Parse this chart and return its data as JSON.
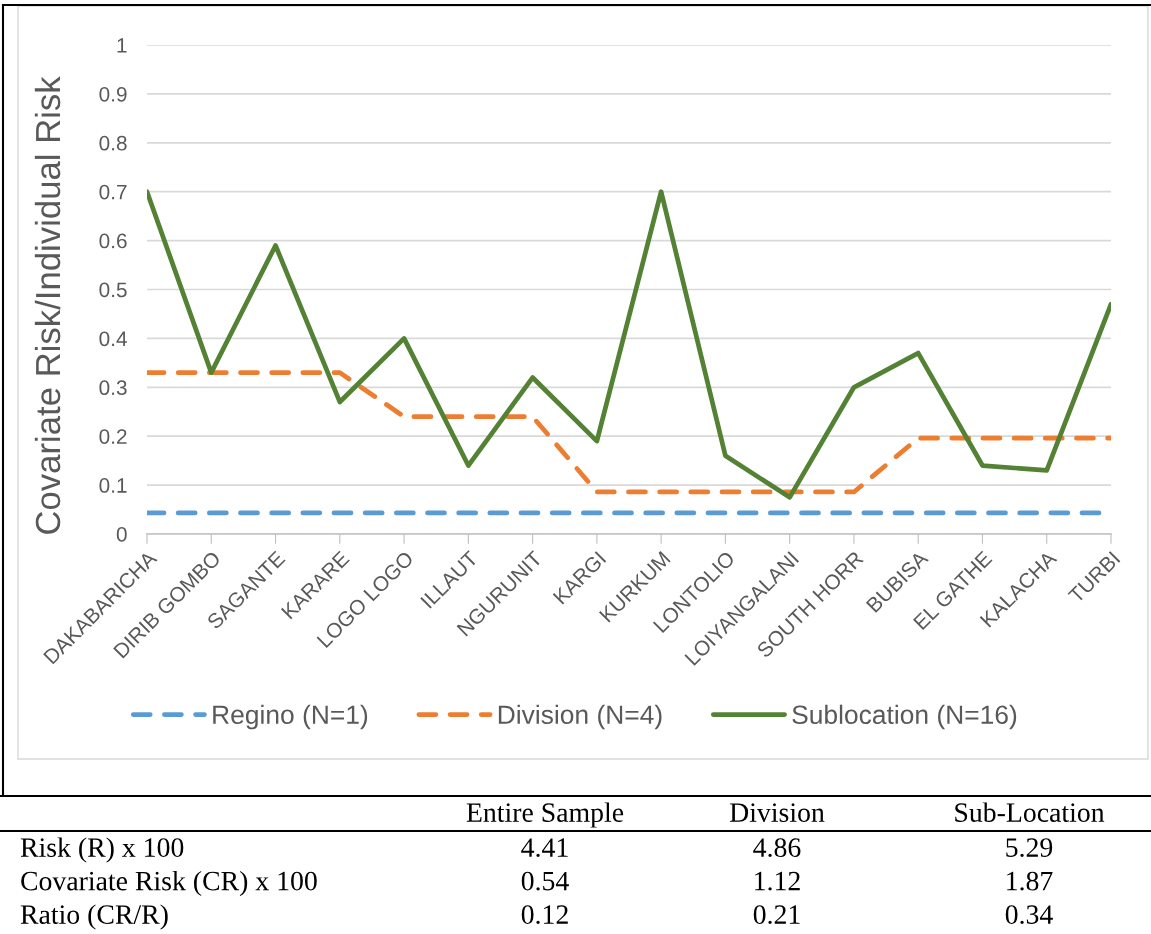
{
  "chart_data": {
    "type": "line",
    "ylabel": "Covariate Risk/Individual Risk",
    "categories": [
      "DAKABARICHA",
      "DIRIB GOMBO",
      "SAGANTE",
      "KARARE",
      "LOGO LOGO",
      "ILLAUT",
      "NGURUNIT",
      "KARGI",
      "KURKUM",
      "LONTOLIO",
      "LOIYANGALANI",
      "SOUTH HORR",
      "BUBISA",
      "EL GATHE",
      "KALACHA",
      "TURBI"
    ],
    "series": [
      {
        "name": "Regino (N=1)",
        "color": "#5b9bd5",
        "line_style": "dashed",
        "values": [
          0.043,
          0.043,
          0.043,
          0.043,
          0.043,
          0.043,
          0.043,
          0.043,
          0.043,
          0.043,
          0.043,
          0.043,
          0.043,
          0.043,
          0.043,
          0.043
        ]
      },
      {
        "name": "Division (N=4)",
        "color": "#ed7d31",
        "line_style": "dashed",
        "values": [
          0.33,
          0.33,
          0.33,
          0.33,
          0.24,
          0.24,
          0.24,
          0.086,
          0.086,
          0.086,
          0.086,
          0.086,
          0.196,
          0.196,
          0.196,
          0.196
        ]
      },
      {
        "name": "Sublocation (N=16)",
        "color": "#548235",
        "line_style": "solid",
        "values": [
          0.7,
          0.33,
          0.59,
          0.27,
          0.4,
          0.14,
          0.32,
          0.19,
          0.7,
          0.16,
          0.075,
          0.3,
          0.37,
          0.14,
          0.13,
          0.47
        ]
      }
    ],
    "ylim": [
      0,
      1
    ],
    "yticks": [
      0,
      0.1,
      0.2,
      0.3,
      0.4,
      0.5,
      0.6,
      0.7,
      0.8,
      0.9,
      1
    ],
    "grid": "y",
    "legend": "bottom",
    "annotations": [
      "Entire Sample",
      "Division",
      "Sub-Location",
      "Risk (R) x 100",
      "4.41",
      "4.86",
      "5.29",
      "Covariate Risk (CR) x 100",
      "0.54",
      "1.12",
      "1.87",
      "Ratio (CR/R)",
      "0.12",
      "0.21",
      "0.34"
    ]
  }
}
